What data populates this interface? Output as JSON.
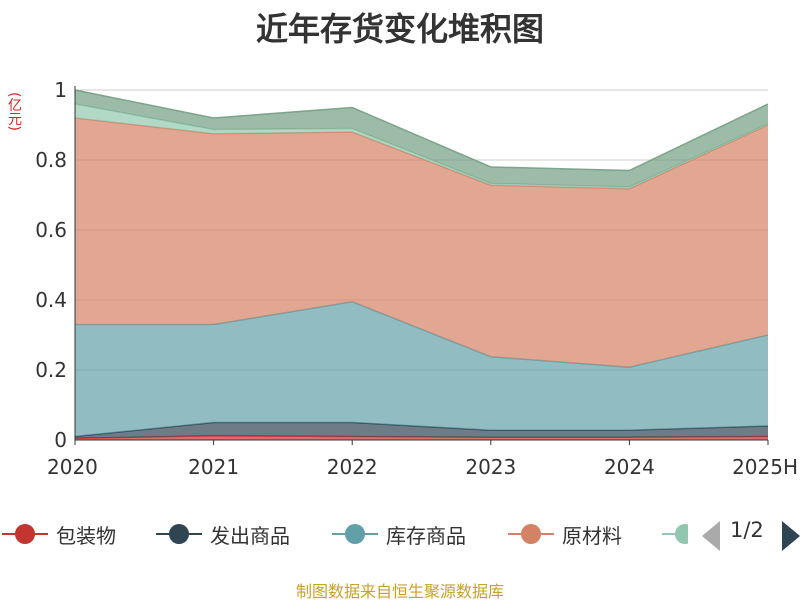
{
  "chart_data": {
    "type": "area",
    "stacked": true,
    "title": "近年存货变化堆积图",
    "unit_label": "(亿元)",
    "categories": [
      "2020",
      "2021",
      "2022",
      "2023",
      "2024",
      "2025H"
    ],
    "ylim": [
      0,
      1
    ],
    "yticks": [
      "0",
      "0.2",
      "0.4",
      "0.6",
      "0.8",
      "1"
    ],
    "grid": true,
    "legend_position": "bottom",
    "series": [
      {
        "name": "包装物",
        "color": "#c23531",
        "values": [
          0.005,
          0.012,
          0.01,
          0.008,
          0.008,
          0.01
        ]
      },
      {
        "name": "发出商品",
        "color": "#2f4554",
        "values": [
          0.005,
          0.038,
          0.04,
          0.02,
          0.02,
          0.03
        ]
      },
      {
        "name": "库存商品",
        "color": "#61a0a8",
        "values": [
          0.32,
          0.28,
          0.345,
          0.21,
          0.18,
          0.26
        ]
      },
      {
        "name": "原材料",
        "color": "#d48265",
        "values": [
          0.59,
          0.545,
          0.485,
          0.49,
          0.51,
          0.6
        ]
      },
      {
        "name": "",
        "color": "#91c7ae",
        "values": [
          0.04,
          0.012,
          0.01,
          0.005,
          0.005,
          0.003
        ]
      },
      {
        "name": "",
        "color": "#749f83",
        "values": [
          0.04,
          0.033,
          0.06,
          0.047,
          0.047,
          0.057
        ]
      }
    ]
  },
  "legend_visible": [
    "包装物",
    "发出商品",
    "库存商品",
    "原材料"
  ],
  "pager": {
    "text": "1/2",
    "prev_icon": "triangle-left-icon",
    "next_icon": "triangle-right-icon"
  },
  "source": "制图数据来自恒生聚源数据库"
}
